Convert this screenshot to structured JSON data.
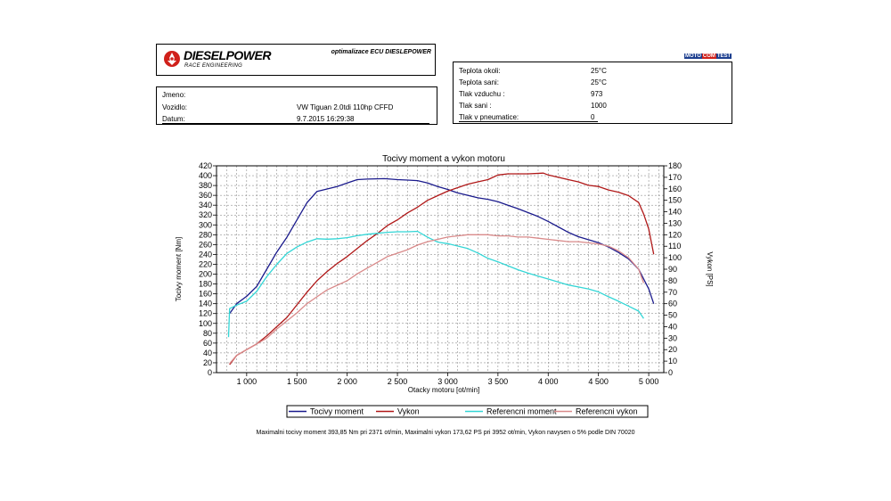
{
  "header": {
    "logo_text": "DIESELPOWER",
    "logo_sub": "RACE ENGINEERING",
    "ecu_text": "optimalizace ECU DIESLEPOWER",
    "badge": [
      "MOTO",
      "COM",
      "TEST"
    ]
  },
  "info": {
    "jmeno_label": "Jmeno:",
    "vozidlo_label": "Vozidlo:",
    "vozidlo_value": "VW Tiguan 2.0tdi 110hp CFFD",
    "datum_label": "Datum:",
    "datum_value": "9.7.2015 16:29:38"
  },
  "conditions": {
    "rows": [
      {
        "label": "Teplota okoli:",
        "value": "25°C"
      },
      {
        "label": "Teplota sani:",
        "value": "25°C"
      },
      {
        "label": "Tlak vzduchu :",
        "value": "973"
      },
      {
        "label": "Tlak sani :",
        "value": "1000"
      },
      {
        "label": "Tlak v pneumatice:",
        "value": "0"
      }
    ]
  },
  "footer_text": "Maximalni tocivy moment 393,85 Nm pri 2371 ot/min,  Maximalni vykon 173,62 PS pri 3952 ot/min,  Vykon navysen o 5% podle DIN 70020",
  "colors": {
    "torque": "#1a1a8c",
    "power": "#b01818",
    "ref_torque": "#33d6d6",
    "ref_power": "#d98a8a"
  },
  "chart_data": {
    "type": "line",
    "title": "Tocivy moment a vykon motoru",
    "xlabel": "Otacky motoru [ot/min]",
    "ylabel": "Tocivy moment [Nm]",
    "y2label": "Vykon [PS]",
    "xlim": [
      700,
      5150
    ],
    "xticks": [
      "1 000",
      "1 500",
      "2 000",
      "2 500",
      "3 000",
      "3 500",
      "4 000",
      "4 500",
      "5 000"
    ],
    "xtick_values": [
      1000,
      1500,
      2000,
      2500,
      3000,
      3500,
      4000,
      4500,
      5000
    ],
    "ylim": [
      0,
      420
    ],
    "y2lim": [
      0,
      180
    ],
    "yticks": [
      0,
      20,
      40,
      60,
      80,
      100,
      120,
      140,
      160,
      180,
      200,
      220,
      240,
      260,
      280,
      300,
      320,
      340,
      360,
      380,
      400,
      420
    ],
    "y2ticks": [
      0,
      10,
      20,
      30,
      40,
      50,
      60,
      70,
      80,
      90,
      100,
      110,
      120,
      130,
      140,
      150,
      160,
      170,
      180
    ],
    "grid": true,
    "legend": "bottom",
    "series": [
      {
        "name": "Tocivy moment",
        "axis": "left",
        "x": [
          830,
          900,
          1000,
          1100,
          1200,
          1300,
          1400,
          1500,
          1600,
          1700,
          1800,
          1900,
          2000,
          2100,
          2200,
          2371,
          2500,
          2600,
          2700,
          2800,
          2900,
          3000,
          3100,
          3200,
          3300,
          3400,
          3500,
          3600,
          3700,
          3800,
          3900,
          4000,
          4100,
          4200,
          4300,
          4400,
          4500,
          4600,
          4700,
          4800,
          4900,
          5000,
          5050
        ],
        "y": [
          120,
          140,
          155,
          175,
          210,
          245,
          275,
          310,
          345,
          368,
          373,
          378,
          385,
          392,
          393,
          393.85,
          392,
          391,
          390,
          385,
          378,
          372,
          365,
          360,
          355,
          352,
          347,
          340,
          333,
          325,
          317,
          307,
          296,
          285,
          276,
          270,
          264,
          255,
          244,
          231,
          210,
          170,
          140
        ]
      },
      {
        "name": "Vykon",
        "axis": "right",
        "x": [
          830,
          900,
          1000,
          1100,
          1200,
          1300,
          1400,
          1500,
          1600,
          1700,
          1800,
          1900,
          2000,
          2100,
          2200,
          2300,
          2400,
          2500,
          2600,
          2700,
          2800,
          2900,
          3000,
          3100,
          3200,
          3300,
          3400,
          3500,
          3600,
          3700,
          3800,
          3952,
          4000,
          4100,
          4200,
          4300,
          4400,
          4500,
          4600,
          4700,
          4800,
          4900,
          4950,
          5000,
          5050
        ],
        "y": [
          7,
          15,
          20,
          25,
          32,
          40,
          48,
          59,
          70,
          80,
          88,
          95,
          101,
          108,
          115,
          121,
          128,
          133,
          139,
          144,
          150,
          154,
          158,
          161,
          164,
          166,
          168,
          172,
          173,
          173,
          173,
          173.62,
          172,
          170,
          168,
          166,
          163,
          162,
          159,
          157,
          154,
          148,
          138,
          125,
          103
        ]
      },
      {
        "name": "Referencni moment",
        "axis": "left",
        "x": [
          820,
          830,
          900,
          1000,
          1100,
          1200,
          1300,
          1400,
          1500,
          1600,
          1700,
          1800,
          1900,
          2000,
          2100,
          2200,
          2300,
          2400,
          2500,
          2600,
          2700,
          2800,
          2900,
          3000,
          3100,
          3200,
          3300,
          3400,
          3500,
          3600,
          3700,
          3800,
          3900,
          4000,
          4100,
          4200,
          4300,
          4400,
          4500,
          4600,
          4700,
          4800,
          4900,
          4950
        ],
        "y": [
          72,
          130,
          137,
          145,
          165,
          195,
          220,
          242,
          255,
          265,
          272,
          271,
          272,
          274,
          278,
          281,
          283,
          285,
          286,
          286,
          287,
          275,
          265,
          262,
          257,
          252,
          243,
          232,
          225,
          217,
          209,
          202,
          196,
          190,
          184,
          178,
          174,
          170,
          164,
          154,
          145,
          135,
          125,
          110
        ]
      },
      {
        "name": "Referencni vykon",
        "axis": "right",
        "x": [
          830,
          900,
          1000,
          1100,
          1200,
          1300,
          1400,
          1500,
          1600,
          1700,
          1800,
          1900,
          2000,
          2100,
          2200,
          2300,
          2400,
          2500,
          2600,
          2700,
          2800,
          2900,
          3000,
          3100,
          3200,
          3300,
          3400,
          3500,
          3600,
          3700,
          3800,
          3900,
          4000,
          4100,
          4200,
          4300,
          4400,
          4500,
          4600,
          4700,
          4800,
          4900,
          4950
        ],
        "y": [
          8,
          15,
          20,
          25,
          30,
          38,
          45,
          52,
          60,
          66,
          72,
          76,
          80,
          86,
          91,
          96,
          101,
          104,
          107,
          111,
          114,
          116,
          118,
          119,
          120,
          120,
          120,
          119,
          119,
          118,
          118,
          117,
          116,
          115,
          114,
          114,
          113,
          112,
          110,
          106,
          100,
          90,
          78
        ]
      }
    ]
  }
}
